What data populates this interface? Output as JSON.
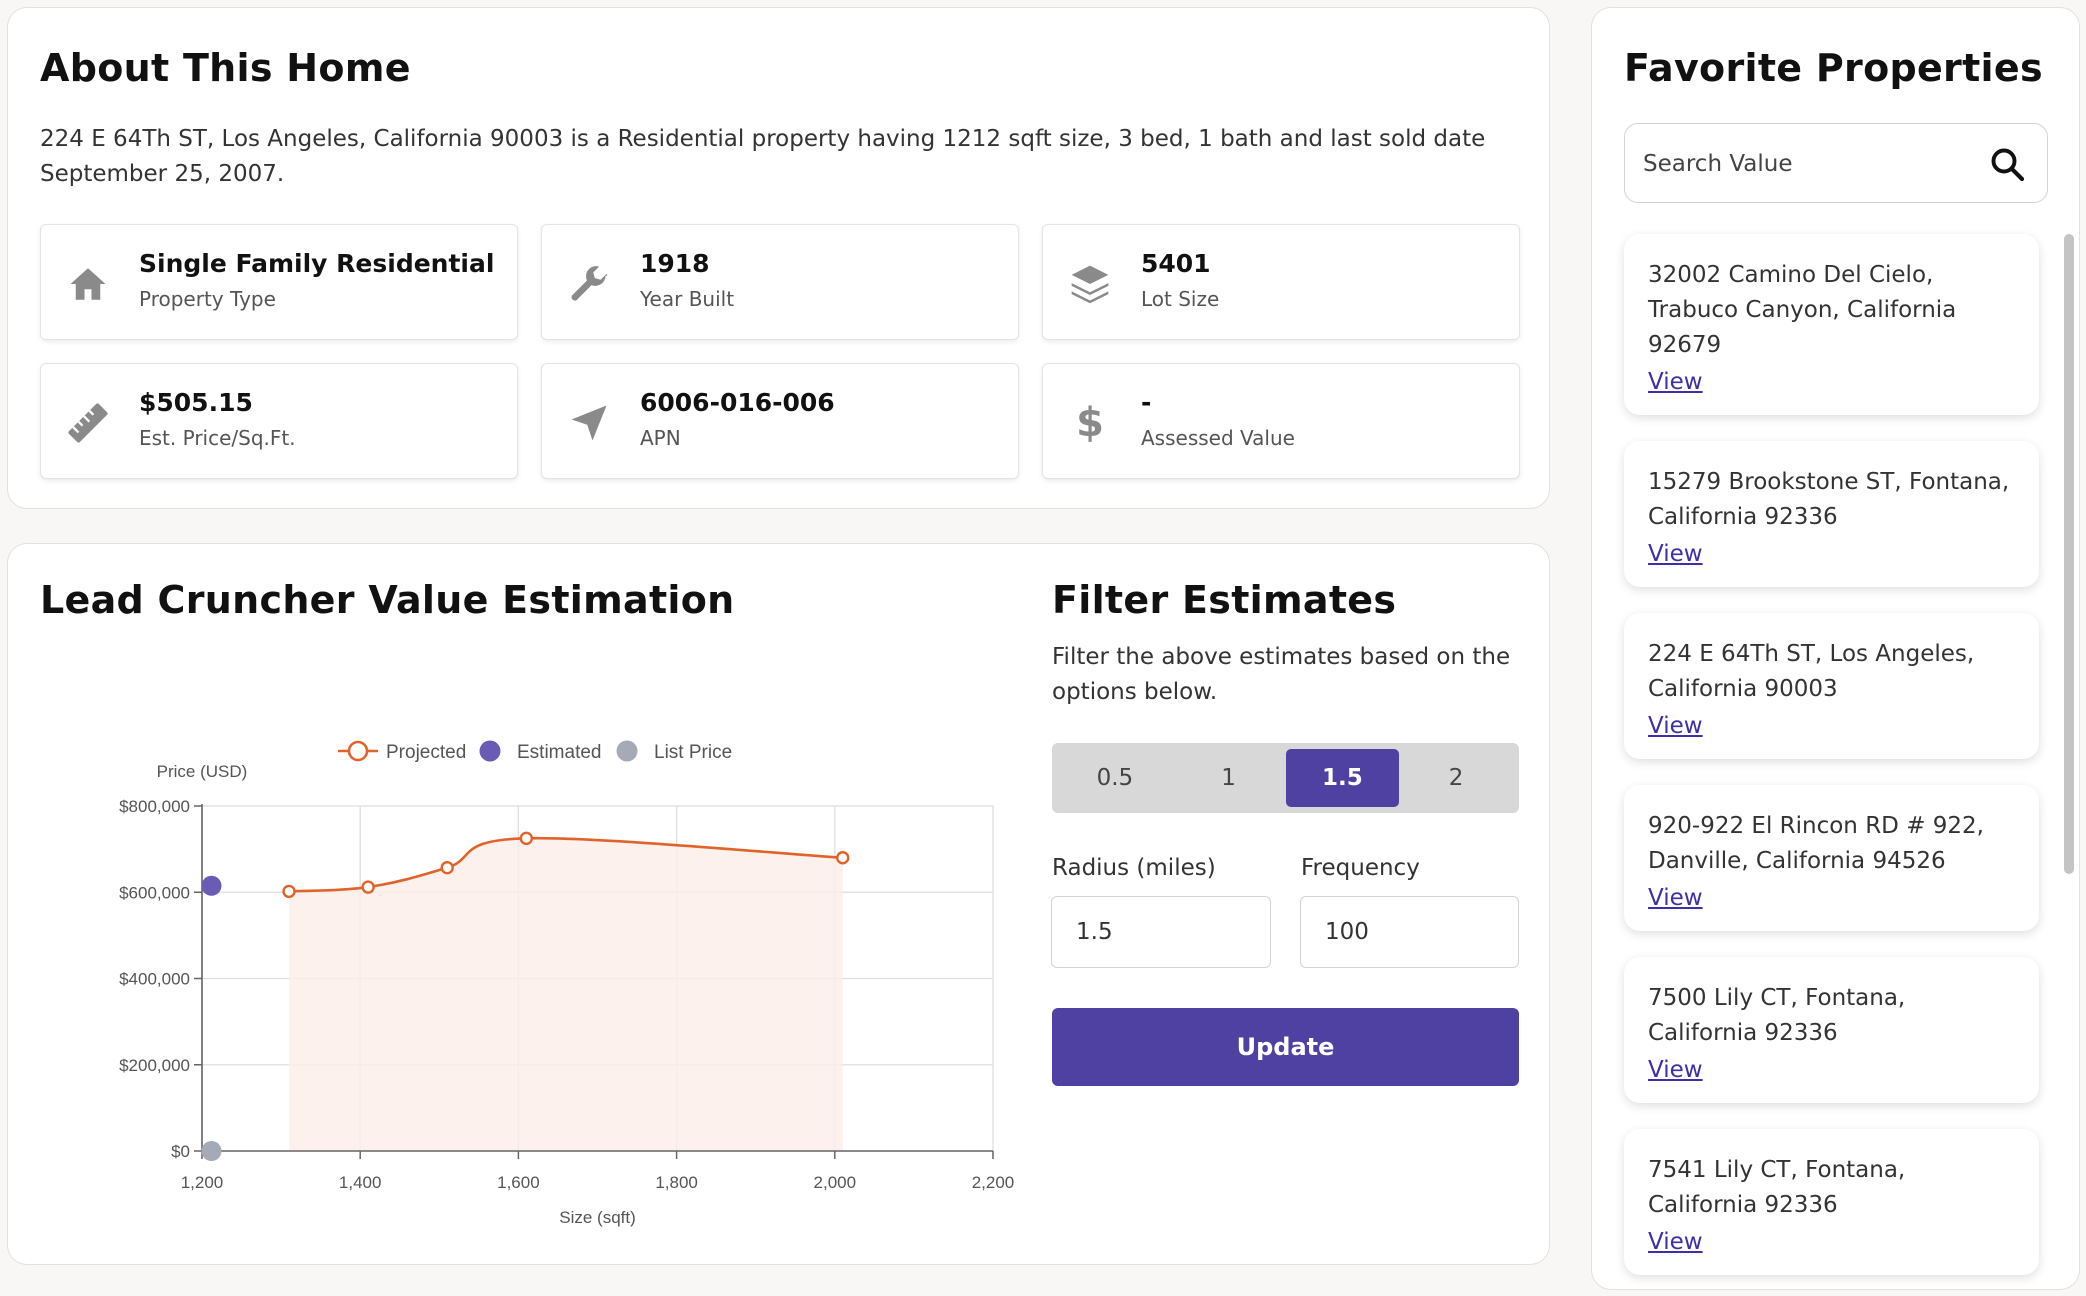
{
  "about": {
    "title": "About This Home",
    "description": "224 E 64Th ST, Los Angeles, California 90003 is a Residential property having 1212 sqft size, 3 bed, 1 bath and last sold date September 25, 2007.",
    "stats": [
      {
        "value": "Single Family Residential",
        "label": "Property Type",
        "icon": "home-icon"
      },
      {
        "value": "1918",
        "label": "Year Built",
        "icon": "wrench-icon"
      },
      {
        "value": "5401",
        "label": "Lot Size",
        "icon": "layers-icon"
      },
      {
        "value": "$505.15",
        "label": "Est. Price/Sq.Ft.",
        "icon": "ruler-icon"
      },
      {
        "value": "6006-016-006",
        "label": "APN",
        "icon": "location-arrow-icon"
      },
      {
        "value": "-",
        "label": "Assessed Value",
        "icon": "dollar-icon"
      }
    ]
  },
  "estimation": {
    "title": "Lead Cruncher Value Estimation"
  },
  "chart_data": {
    "type": "line",
    "xlabel": "Size (sqft)",
    "ylabel": "Price (USD)",
    "xlim": [
      1200,
      2200
    ],
    "ylim": [
      0,
      800000
    ],
    "x_ticks": [
      "1,200",
      "1,400",
      "1,600",
      "1,800",
      "2,000",
      "2,200"
    ],
    "y_ticks": [
      "$0",
      "$200,000",
      "$400,000",
      "$600,000",
      "$800,000"
    ],
    "grid": true,
    "legend": "top",
    "series": [
      {
        "name": "Projected",
        "type": "area-line",
        "color": "#e0632a",
        "x": [
          1310,
          1410,
          1510,
          1610,
          2010
        ],
        "y": [
          602000,
          612000,
          657000,
          725000,
          680000
        ]
      },
      {
        "name": "Estimated",
        "type": "scatter",
        "color": "#6a5cb5",
        "x": [
          1212
        ],
        "y": [
          615000
        ]
      },
      {
        "name": "List Price",
        "type": "scatter",
        "color": "#a5abb6",
        "x": [
          1212
        ],
        "y": [
          0
        ]
      }
    ]
  },
  "filter": {
    "title": "Filter Estimates",
    "description": "Filter the above estimates based on the options below.",
    "options": [
      "0.5",
      "1",
      "1.5",
      "2"
    ],
    "selected": "1.5",
    "radius_label": "Radius (miles)",
    "radius_value": "1.5",
    "frequency_label": "Frequency",
    "frequency_value": "100",
    "update_label": "Update"
  },
  "favorites": {
    "title": "Favorite Properties",
    "search_placeholder": "Search Value",
    "view_label": "View",
    "items": [
      "32002 Camino Del Cielo, Trabuco Canyon, California 92679",
      "15279 Brookstone ST, Fontana, California 92336",
      "224 E 64Th ST, Los Angeles, California 90003",
      "920-922 El Rincon RD # 922, Danville, California 94526",
      "7500 Lily CT, Fontana, California 92336",
      "7541 Lily CT, Fontana, California 92336"
    ]
  }
}
